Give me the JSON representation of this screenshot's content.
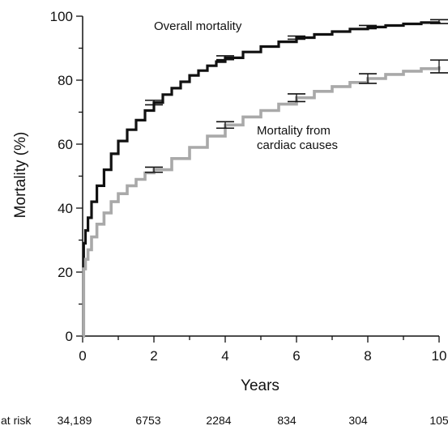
{
  "chart_data": {
    "type": "line",
    "xlabel": "Years",
    "ylabel": "Mortality (%)",
    "xlim": [
      0,
      10
    ],
    "ylim": [
      0,
      100
    ],
    "x_ticks": [
      "0",
      "2",
      "4",
      "6",
      "8",
      "10"
    ],
    "y_ticks": [
      "0",
      "20",
      "40",
      "60",
      "80",
      "100"
    ],
    "grid": false,
    "series": [
      {
        "name": "Overall mortality",
        "color": "#111111",
        "x": [
          0,
          0.03,
          0.08,
          0.15,
          0.25,
          0.4,
          0.6,
          0.8,
          1.0,
          1.25,
          1.5,
          1.75,
          2.0,
          2.25,
          2.5,
          2.75,
          3.0,
          3.25,
          3.5,
          3.75,
          4.0,
          4.5,
          5.0,
          5.5,
          6.0,
          6.5,
          7.0,
          7.5,
          8.0,
          8.5,
          9.0,
          9.5,
          10.0
        ],
        "y": [
          0,
          29,
          33,
          37,
          42,
          47,
          52,
          57,
          61,
          64.5,
          67.5,
          70.5,
          73,
          75.5,
          77.5,
          79.5,
          81.5,
          83,
          84.5,
          85.8,
          87,
          88.8,
          90.5,
          92,
          93.3,
          94.3,
          95.2,
          96,
          96.6,
          97.1,
          97.6,
          98,
          98.3
        ],
        "error_bars": [
          {
            "x": 2,
            "y": 73,
            "err": 0.7
          },
          {
            "x": 4,
            "y": 87,
            "err": 0.6
          },
          {
            "x": 6,
            "y": 93.3,
            "err": 0.5
          },
          {
            "x": 8,
            "y": 96.6,
            "err": 0.5
          },
          {
            "x": 10,
            "y": 98.3,
            "err": 0.6
          }
        ]
      },
      {
        "name": "Mortality from cardiac causes",
        "color": "#a9a9a9",
        "x": [
          0,
          0.03,
          0.08,
          0.15,
          0.25,
          0.4,
          0.6,
          0.8,
          1.0,
          1.25,
          1.5,
          1.75,
          2.0,
          2.5,
          3.0,
          3.5,
          4.0,
          4.5,
          5.0,
          5.5,
          6.0,
          6.5,
          7.0,
          7.5,
          8.0,
          8.5,
          9.0,
          9.5,
          10.0
        ],
        "y": [
          0,
          21,
          24,
          27,
          31,
          35,
          38.5,
          42,
          44.5,
          47,
          49,
          51,
          52,
          55.5,
          59,
          62.5,
          66,
          68.5,
          70.5,
          72.5,
          74.5,
          76.5,
          78,
          79.3,
          80.5,
          81.8,
          82.8,
          83.6,
          84.3
        ],
        "error_bars": [
          {
            "x": 2,
            "y": 52,
            "err": 0.8
          },
          {
            "x": 4,
            "y": 66,
            "err": 1.0
          },
          {
            "x": 6,
            "y": 74.5,
            "err": 1.2
          },
          {
            "x": 8,
            "y": 80.5,
            "err": 1.5
          },
          {
            "x": 10,
            "y": 84.3,
            "err": 2.0
          }
        ]
      }
    ],
    "annotations": {
      "overall": "Overall mortality",
      "cardiac_line1": "Mortality from",
      "cardiac_line2": "cardiac causes"
    },
    "at_risk": {
      "label": "at risk",
      "values": [
        "34,189",
        "6753",
        "2284",
        "834",
        "304",
        "105"
      ]
    }
  }
}
